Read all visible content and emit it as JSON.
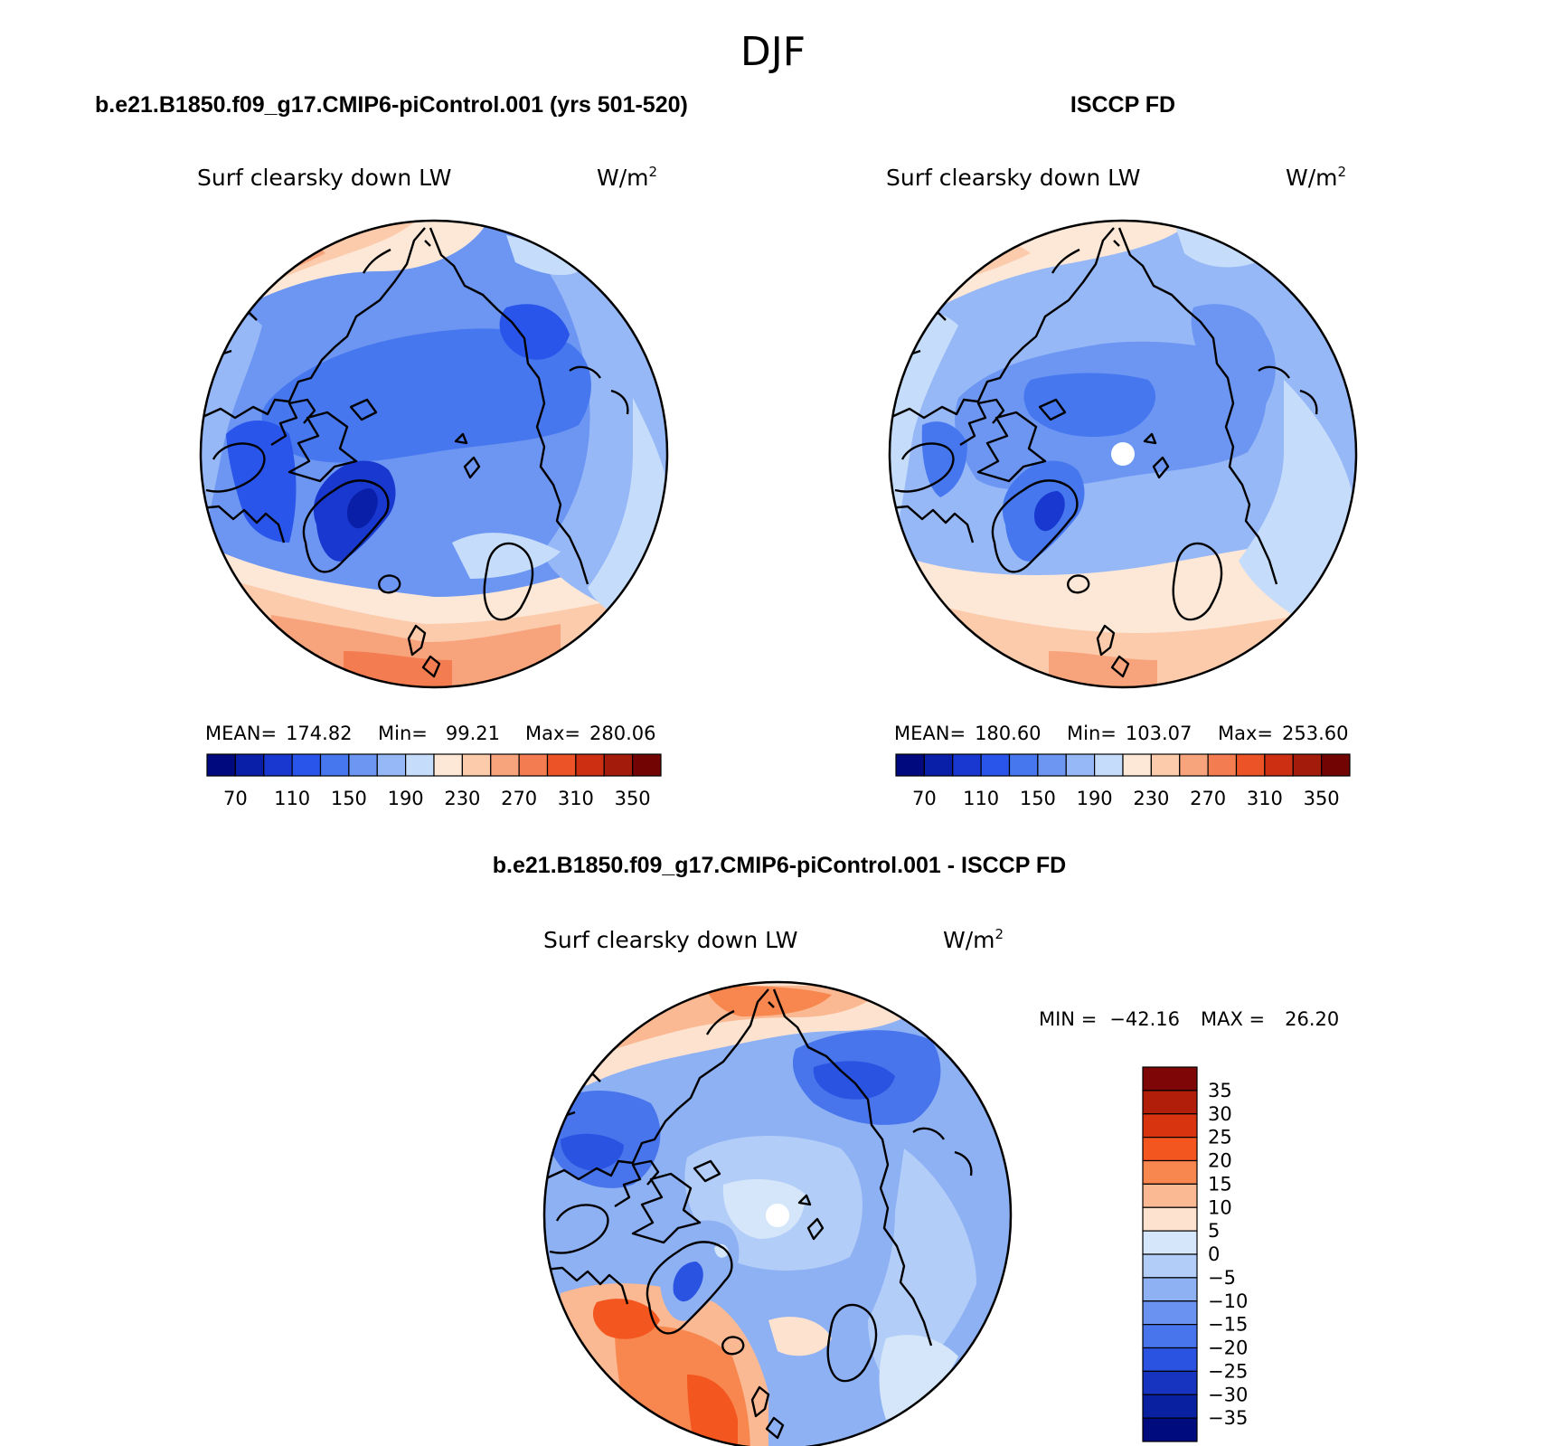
{
  "figure": {
    "title": "DJF",
    "panels": [
      {
        "id": "model",
        "case_title": "b.e21.B1850.f09_g17.CMIP6-piControl.001 (yrs 501-520)",
        "variable": "Surf clearsky down LW",
        "units": "W/m",
        "units_superscript": "2",
        "mean_label": "MEAN=",
        "mean": "174.82",
        "min_label": "Min=",
        "min": "99.21",
        "max_label": "Max=",
        "max": "280.06"
      },
      {
        "id": "obs",
        "case_title": "ISCCP FD",
        "variable": "Surf clearsky down LW",
        "units": "W/m",
        "units_superscript": "2",
        "mean_label": "MEAN=",
        "mean": "180.60",
        "min_label": "Min=",
        "min": "103.07",
        "max_label": "Max=",
        "max": "253.60"
      },
      {
        "id": "diff",
        "case_title": "b.e21.B1850.f09_g17.CMIP6-piControl.001 - ISCCP FD",
        "variable": "Surf clearsky down LW",
        "units": "W/m",
        "units_superscript": "2",
        "min_label": "MIN =",
        "min": "−42.16",
        "max_label": "MAX =",
        "max": "26.20"
      }
    ]
  },
  "chart_data": [
    {
      "type": "heatmap",
      "projection": "north-polar-stereographic",
      "title": "Surf clearsky down LW",
      "units": "W/m2",
      "colorbar": {
        "orientation": "horizontal",
        "tick_labels": [
          "70",
          "110",
          "150",
          "190",
          "230",
          "270",
          "310",
          "350"
        ],
        "levels": [
          70,
          90,
          110,
          130,
          150,
          170,
          190,
          210,
          230,
          250,
          270,
          290,
          310,
          330,
          350
        ],
        "colors": [
          "#000a7e",
          "#0a1fa8",
          "#1838d0",
          "#2a55ea",
          "#4677ef",
          "#6c96f2",
          "#97b8f7",
          "#c6dcfb",
          "#fde7d6",
          "#fbcbac",
          "#f7a47c",
          "#f37c51",
          "#ec5428",
          "#cc2f12",
          "#a31b0a",
          "#720404"
        ]
      },
      "fields": {
        "mean": 174.82,
        "min": 99.21,
        "max": 280.06
      }
    },
    {
      "type": "heatmap",
      "projection": "north-polar-stereographic",
      "title": "Surf clearsky down LW",
      "units": "W/m2",
      "colorbar": {
        "orientation": "horizontal",
        "tick_labels": [
          "70",
          "110",
          "150",
          "190",
          "230",
          "270",
          "310",
          "350"
        ],
        "levels": [
          70,
          90,
          110,
          130,
          150,
          170,
          190,
          210,
          230,
          250,
          270,
          290,
          310,
          330,
          350
        ],
        "colors": [
          "#000a7e",
          "#0a1fa8",
          "#1838d0",
          "#2a55ea",
          "#4677ef",
          "#6c96f2",
          "#97b8f7",
          "#c6dcfb",
          "#fde7d6",
          "#fbcbac",
          "#f7a47c",
          "#f37c51",
          "#ec5428",
          "#cc2f12",
          "#a31b0a",
          "#720404"
        ]
      },
      "fields": {
        "mean": 180.6,
        "min": 103.07,
        "max": 253.6
      }
    },
    {
      "type": "heatmap",
      "projection": "north-polar-stereographic",
      "title": "Surf clearsky down LW",
      "units": "W/m2",
      "colorbar": {
        "orientation": "vertical",
        "tick_labels": [
          "35",
          "30",
          "25",
          "20",
          "15",
          "10",
          "5",
          "0",
          "−5",
          "−10",
          "−15",
          "−20",
          "−25",
          "−30",
          "−35"
        ],
        "levels": [
          -35,
          -30,
          -25,
          -20,
          -15,
          -10,
          -5,
          0,
          5,
          10,
          15,
          20,
          25,
          30,
          35
        ],
        "colors_top_to_bottom": [
          "#7e0606",
          "#b11e09",
          "#d93410",
          "#f4561f",
          "#f7864f",
          "#fab992",
          "#fde3cf",
          "#d5e6fa",
          "#b2cdf7",
          "#8eb1f4",
          "#6a92f0",
          "#4874ec",
          "#2a53e1",
          "#1634c0",
          "#0920a0",
          "#000c7d"
        ]
      },
      "fields": {
        "min": -42.16,
        "max": 26.2
      }
    }
  ]
}
